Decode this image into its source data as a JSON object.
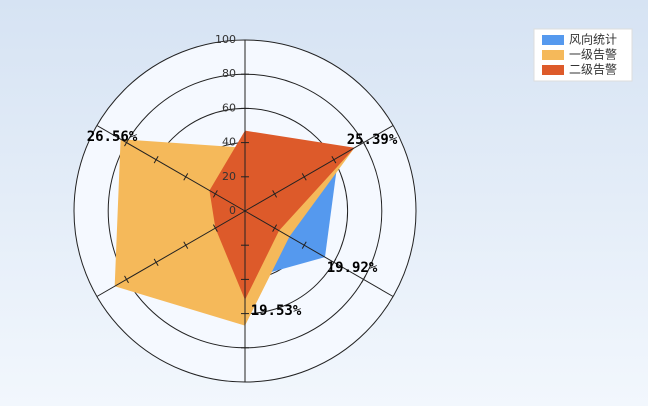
{
  "chart_data": {
    "type": "radar",
    "categories": [
      null,
      null,
      null,
      null,
      null,
      null
    ],
    "rlim": [
      0,
      100
    ],
    "rticks": [
      0,
      20,
      40,
      60,
      80,
      100
    ],
    "series": [
      {
        "name": "风向统计",
        "color": "#5599ee",
        "values": [
          30,
          63,
          54,
          40,
          15,
          20
        ]
      },
      {
        "name": "一级告警",
        "color": "#f5b95a",
        "values": [
          37,
          74,
          30,
          67,
          88,
          84
        ]
      },
      {
        "name": "二级告警",
        "color": "#dd5a2a",
        "values": [
          47,
          74,
          23,
          52,
          20,
          24
        ]
      }
    ],
    "annotations": [
      "25.39%",
      "19.92%",
      "19.53%",
      "26.56%"
    ],
    "legend": "top-right"
  }
}
